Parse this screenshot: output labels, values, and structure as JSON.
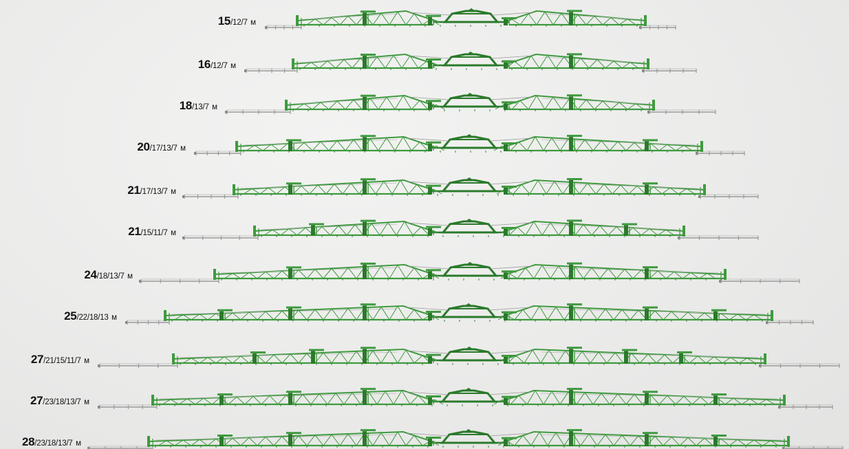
{
  "colors": {
    "boom_green": "#3f9a3f",
    "boom_green_dark": "#2b7a2b",
    "extension_grey": "#9a9a9a",
    "label_text": "#111111",
    "background": "#ececeb"
  },
  "rows": [
    {
      "primary": "15",
      "secondary": "/12/7",
      "unit": "м"
    },
    {
      "primary": "16",
      "secondary": "/12/7",
      "unit": "м"
    },
    {
      "primary": "18",
      "secondary": "/13/7",
      "unit": "м"
    },
    {
      "primary": "20",
      "secondary": "/17/13/7",
      "unit": "м"
    },
    {
      "primary": "21",
      "secondary": "/17/13/7",
      "unit": "м"
    },
    {
      "primary": "21",
      "secondary": "/15/11/7",
      "unit": "м"
    },
    {
      "primary": "24",
      "secondary": "/18/13/7",
      "unit": "м"
    },
    {
      "primary": "25",
      "secondary": "/22/18/13",
      "unit": "м"
    },
    {
      "primary": "27",
      "secondary": "/21/15/11/7",
      "unit": "м"
    },
    {
      "primary": "27",
      "secondary": "/23/18/13/7",
      "unit": "м"
    },
    {
      "primary": "28",
      "secondary": "/23/18/13/7",
      "unit": "м"
    }
  ]
}
